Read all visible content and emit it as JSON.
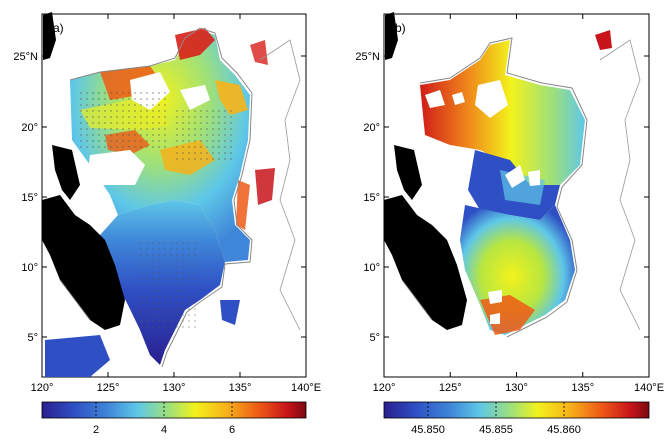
{
  "panels": [
    {
      "label": "(a)",
      "lat_ticks": [
        "25°N",
        "20°",
        "15°",
        "10°",
        "5°"
      ],
      "lon_ticks": [
        "120°",
        "125°",
        "130°",
        "135°",
        "140°E"
      ],
      "colorbar": {
        "ticks": [
          "2",
          "4",
          "6"
        ],
        "colors": [
          "#2a1f8f",
          "#2f4fc4",
          "#3f86d8",
          "#5ec7e8",
          "#9fe07a",
          "#f2f21c",
          "#f7b21a",
          "#ee5a16",
          "#c8141a",
          "#7a0a10"
        ]
      }
    },
    {
      "label": "(b)",
      "lat_ticks": [
        "25°N",
        "20°",
        "15°",
        "10°",
        "5°"
      ],
      "lon_ticks": [
        "120°",
        "125°",
        "130°",
        "135°",
        "140°E"
      ],
      "colorbar": {
        "ticks": [
          "45.850",
          "45.855",
          "45.860"
        ],
        "colors": [
          "#2a1f8f",
          "#2f4fc4",
          "#3f86d8",
          "#5ec7e8",
          "#9fe07a",
          "#f2f21c",
          "#f7b21a",
          "#ee5a16",
          "#c8141a",
          "#7a0a10"
        ]
      }
    }
  ]
}
